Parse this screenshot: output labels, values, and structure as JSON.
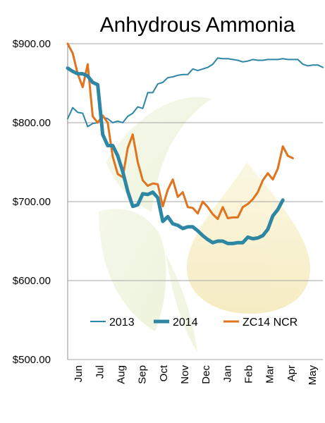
{
  "chart_data": {
    "type": "line",
    "title": "Anhydrous Ammonia",
    "xlabel": "",
    "ylabel": "",
    "ylim": [
      500,
      900
    ],
    "y_ticks": [
      "$500.00",
      "$600.00",
      "$700.00",
      "$800.00",
      "$900.00"
    ],
    "y_tick_values": [
      500,
      600,
      700,
      800,
      900
    ],
    "grid": "horizontal",
    "legend_position": "bottom",
    "categories": [
      "Jun",
      "Jul",
      "Aug",
      "Sep",
      "Oct",
      "Nov",
      "Dec",
      "Jan",
      "Feb",
      "Mar",
      "Apr",
      "May"
    ],
    "x_range_weeks": [
      0,
      51
    ],
    "series": [
      {
        "name": "2013",
        "color": "#2e86a5",
        "width": 2,
        "x": [
          0,
          1,
          2,
          3,
          4,
          5,
          6,
          7,
          8,
          9,
          10,
          11,
          12,
          13,
          14,
          15,
          16,
          17,
          18,
          19,
          20,
          21,
          22,
          23,
          24,
          25,
          26,
          27,
          28,
          29,
          30,
          31,
          32,
          33,
          34,
          35,
          36,
          37,
          38,
          39,
          40,
          41,
          42,
          43,
          44,
          45,
          46,
          47,
          48,
          49,
          50,
          51
        ],
        "values": [
          805,
          819,
          813,
          812,
          795,
          799,
          800,
          807,
          805,
          800,
          802,
          800,
          808,
          812,
          820,
          818,
          838,
          838,
          849,
          851,
          857,
          858,
          860,
          861,
          861,
          868,
          866,
          868,
          870,
          874,
          882,
          881,
          881,
          880,
          879,
          877,
          878,
          880,
          879,
          879,
          880,
          880,
          880,
          881,
          880,
          880,
          880,
          874,
          872,
          873,
          873,
          870
        ]
      },
      {
        "name": "2014",
        "color": "#2e86a5",
        "width": 5,
        "x": [
          0,
          1,
          2,
          3,
          4,
          5,
          6,
          7,
          8,
          9,
          10,
          11,
          12,
          13,
          14,
          15,
          16,
          17,
          18,
          19,
          20,
          21,
          22,
          23,
          24,
          25,
          26,
          27,
          28,
          29,
          30,
          31,
          32,
          33,
          34,
          35,
          36,
          37,
          38,
          39,
          40,
          41,
          42,
          43,
          44,
          45,
          46,
          47
        ],
        "values": [
          869,
          865,
          862,
          862,
          859,
          851,
          848,
          785,
          771,
          771,
          758,
          738,
          713,
          694,
          696,
          710,
          709,
          712,
          705,
          675,
          681,
          672,
          670,
          666,
          668,
          668,
          663,
          657,
          652,
          648,
          650,
          650,
          647,
          647,
          648,
          648,
          655,
          653,
          654,
          657,
          665,
          682,
          690,
          702,
          null,
          null,
          null,
          null
        ]
      },
      {
        "name": "ZC14 NCR",
        "color": "#e0731e",
        "width": 3,
        "x": [
          0,
          1,
          2,
          3,
          4,
          5,
          6,
          7,
          8,
          9,
          10,
          11,
          12,
          13,
          14,
          15,
          16,
          17,
          18,
          19,
          20,
          21,
          22,
          23,
          24,
          25,
          26,
          27,
          28,
          29,
          30,
          31,
          32,
          33,
          34,
          35,
          36,
          37,
          38,
          39,
          40,
          41,
          42,
          43,
          44,
          45,
          46,
          47
        ],
        "values": [
          900,
          888,
          862,
          845,
          874,
          808,
          800,
          809,
          800,
          757,
          735,
          731,
          768,
          785,
          750,
          727,
          720,
          723,
          722,
          694,
          715,
          728,
          706,
          712,
          693,
          692,
          685,
          700,
          693,
          684,
          678,
          693,
          679,
          680,
          680,
          693,
          697,
          703,
          712,
          727,
          736,
          728,
          742,
          770,
          758,
          755,
          null,
          null
        ]
      }
    ]
  }
}
